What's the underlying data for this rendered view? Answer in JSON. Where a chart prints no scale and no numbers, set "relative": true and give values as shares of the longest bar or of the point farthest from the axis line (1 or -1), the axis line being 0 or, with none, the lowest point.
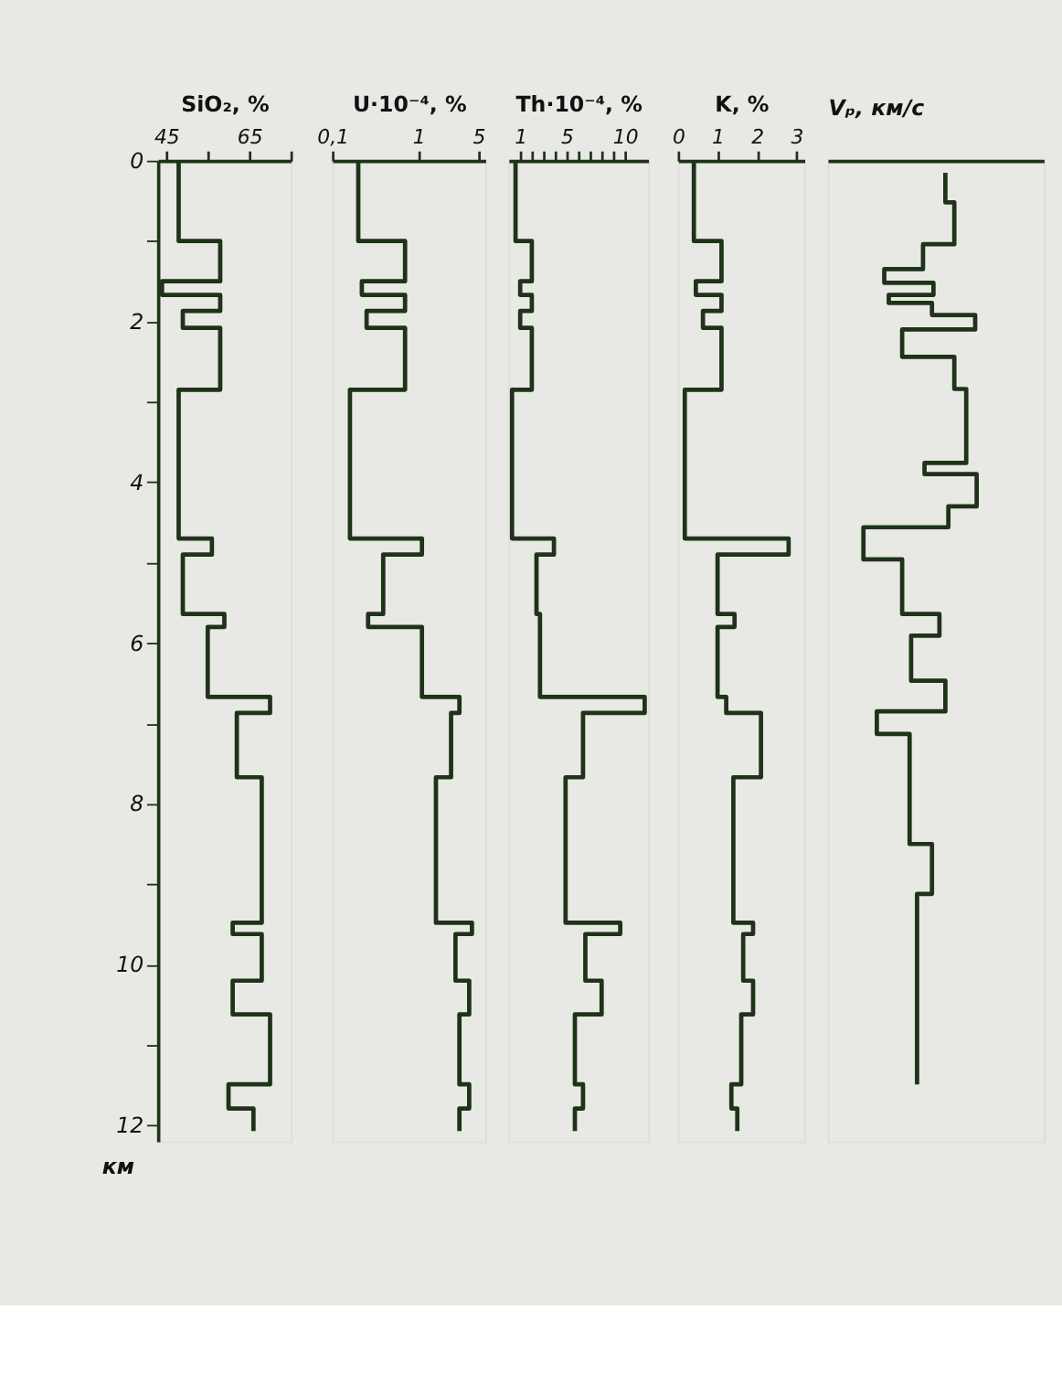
{
  "chart_data": [
    {
      "type": "step",
      "orientation": "horizontal",
      "xlabel": "SiO₂, %",
      "ylabel": "км",
      "xlim": [
        43,
        75
      ],
      "xticks": [
        45,
        {
          "value": 55,
          "label": null
        },
        65,
        {
          "value": 75,
          "label": null
        }
      ],
      "ylim": [
        12.2,
        0
      ],
      "yticks": [
        0,
        {
          "value": 1,
          "label": null
        },
        2,
        {
          "value": 3,
          "label": null
        },
        4,
        {
          "value": 5,
          "label": null
        },
        6,
        {
          "value": 7,
          "label": null
        },
        8,
        {
          "value": 9,
          "label": null
        },
        10,
        {
          "value": 11,
          "label": null
        },
        12
      ],
      "x": [
        0,
        1.0,
        1.5,
        1.67,
        1.87,
        2.08,
        2.85,
        4.7,
        4.9,
        5.64,
        5.8,
        6.67,
        6.87,
        7.67,
        9.48,
        9.62,
        10.2,
        10.62,
        11.49,
        11.79,
        12.07
      ],
      "series": [
        {
          "color": "#1e3318",
          "values": [
            48,
            58,
            44,
            58,
            49,
            58,
            48,
            56,
            49,
            59,
            55,
            70,
            62,
            68,
            61,
            68,
            61,
            70,
            60,
            66,
            66
          ]
        }
      ]
    },
    {
      "type": "step",
      "orientation": "horizontal",
      "xlabel": "U·10⁻⁴, %",
      "log": "x",
      "xlim": [
        0.1,
        6
      ],
      "xticks": [
        {
          "value": 0.1,
          "label": "0,1"
        },
        1,
        5
      ],
      "ylim": [
        12.2,
        0
      ],
      "tick_labels": "x",
      "x": [
        0,
        1.0,
        1.5,
        1.67,
        1.87,
        2.08,
        2.85,
        4.7,
        4.9,
        5.64,
        5.8,
        6.67,
        6.87,
        7.67,
        9.48,
        9.62,
        10.2,
        10.62,
        11.49,
        11.79,
        12.07
      ],
      "series": [
        {
          "color": "#1e3318",
          "values": [
            0.2,
            0.7,
            0.22,
            0.7,
            0.25,
            0.7,
            0.16,
            1.1,
            0.39,
            0.26,
            1.1,
            3.0,
            2.4,
            1.6,
            4.2,
            2.7,
            3.9,
            3.0,
            3.9,
            3.0,
            3.0
          ]
        }
      ]
    },
    {
      "type": "step",
      "orientation": "horizontal",
      "xlabel": "Th·10⁻⁴, %",
      "xlim": [
        0,
        12
      ],
      "xticks": [
        1,
        {
          "value": 2,
          "label": null
        },
        {
          "value": 3,
          "label": null
        },
        {
          "value": 4,
          "label": null
        },
        5,
        {
          "value": 6,
          "label": null
        },
        {
          "value": 7,
          "label": null
        },
        {
          "value": 8,
          "label": null
        },
        {
          "value": 9,
          "label": null
        },
        10
      ],
      "ylim": [
        12.2,
        0
      ],
      "tick_labels": "x",
      "x": [
        0,
        1.0,
        1.5,
        1.67,
        1.87,
        2.08,
        2.85,
        4.7,
        4.9,
        5.64,
        5.8,
        6.67,
        6.87,
        7.67,
        9.48,
        9.62,
        10.2,
        10.62,
        11.49,
        11.79,
        12.07
      ],
      "series": [
        {
          "color": "#1e3318",
          "values": [
            0.6,
            2,
            1,
            2,
            1,
            2,
            0.3,
            3.9,
            2.4,
            2.7,
            2.7,
            11.7,
            6.4,
            4.9,
            9.6,
            6.6,
            8,
            5.7,
            6.4,
            5.7,
            5.7
          ]
        }
      ]
    },
    {
      "type": "step",
      "orientation": "horizontal",
      "xlabel": "K, %",
      "xlim": [
        0,
        3.2
      ],
      "xticks": [
        0,
        1,
        2,
        3
      ],
      "ylim": [
        12.2,
        0
      ],
      "tick_labels": "x",
      "x": [
        0,
        1.0,
        1.5,
        1.67,
        1.87,
        2.08,
        2.85,
        4.7,
        4.9,
        5.64,
        5.8,
        6.67,
        6.87,
        7.67,
        9.48,
        9.62,
        10.2,
        10.62,
        11.49,
        11.79,
        12.07
      ],
      "series": [
        {
          "color": "#1e3318",
          "values": [
            0.4,
            1.1,
            0.45,
            1.1,
            0.63,
            1.1,
            0.17,
            2.8,
            1.0,
            1.43,
            1.0,
            1.22,
            2.1,
            1.4,
            1.9,
            1.65,
            1.9,
            1.6,
            1.35,
            1.5,
            1.5
          ]
        }
      ]
    },
    {
      "type": "step",
      "orientation": "horizontal",
      "relative": true,
      "xlabel": "Vₚ, км/с",
      "ylim": [
        12.2,
        0
      ],
      "tick_labels": false,
      "x": [
        0.15,
        0.52,
        1.04,
        1.35,
        1.52,
        1.67,
        1.77,
        1.92,
        2.1,
        2.44,
        2.84,
        3.76,
        3.9,
        4.3,
        4.56,
        4.96,
        5.64,
        5.91,
        6.47,
        6.85,
        7.13,
        8.5,
        9.12,
        11.49
      ],
      "series": [
        {
          "color": "#1e3318",
          "values": [
            0.79,
            0.85,
            0.64,
            0.38,
            0.71,
            0.41,
            0.7,
            0.99,
            0.5,
            0.85,
            0.93,
            0.65,
            1.0,
            0.81,
            0.24,
            0.5,
            0.75,
            0.56,
            0.79,
            0.33,
            0.55,
            0.7,
            0.6,
            0.6
          ]
        }
      ]
    }
  ]
}
